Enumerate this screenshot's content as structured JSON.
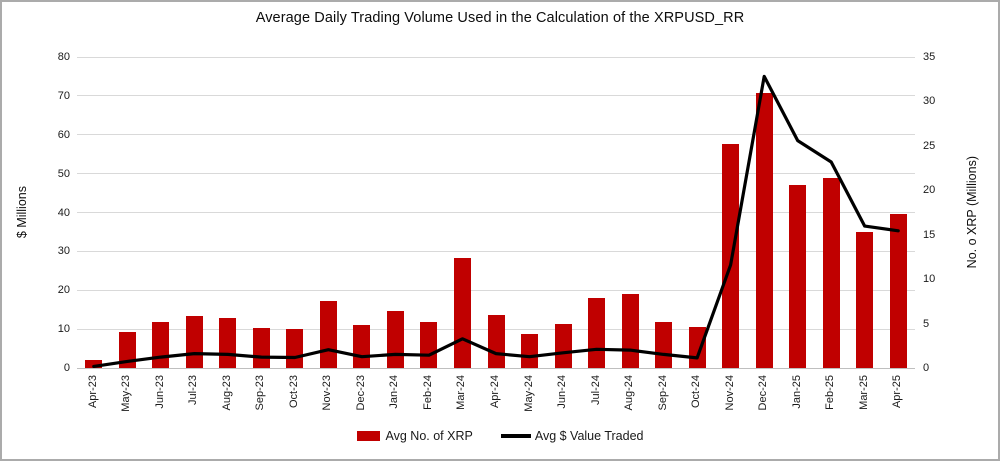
{
  "title": "Average Daily Trading Volume Used in the Calculation of the XRPUSD_RR",
  "left_axis": {
    "label": "$ Millions",
    "ticks": [
      "0",
      "10",
      "20",
      "30",
      "40",
      "50",
      "60",
      "70",
      "80"
    ],
    "max": 80
  },
  "right_axis": {
    "label": "No. o XRP (Millions)",
    "ticks": [
      "0",
      "5",
      "10",
      "15",
      "20",
      "25",
      "30",
      "35"
    ],
    "max": 35
  },
  "legend": {
    "bar_label": "Avg No. of XRP",
    "line_label": "Avg $ Value Traded"
  },
  "colors": {
    "bar": "#c00000",
    "line": "#000000",
    "gridline": "#d9d9d9",
    "axis_line": "#bfbfbf",
    "border": "#ababab"
  },
  "chart_data": {
    "type": "bar+line combo",
    "title": "Average Daily Trading Volume Used in the Calculation of the XRPUSD_RR",
    "categories": [
      "Apr-23",
      "May-23",
      "Jun-23",
      "Jul-23",
      "Aug-23",
      "Sep-23",
      "Oct-23",
      "Nov-23",
      "Dec-23",
      "Jan-24",
      "Feb-24",
      "Mar-24",
      "Apr-24",
      "May-24",
      "Jun-24",
      "Jul-24",
      "Aug-24",
      "Sep-24",
      "Oct-24",
      "Nov-24",
      "Dec-24",
      "Jan-25",
      "Feb-25",
      "Mar-25",
      "Apr-25"
    ],
    "series": [
      {
        "name": "Avg No. of XRP",
        "type": "bar",
        "axis": "right",
        "color": "#c00000",
        "values": [
          0.9,
          4.0,
          5.2,
          5.9,
          5.6,
          4.5,
          4.4,
          7.5,
          4.8,
          6.4,
          5.2,
          12.4,
          6.0,
          3.8,
          4.9,
          7.9,
          8.3,
          5.2,
          4.6,
          25.2,
          30.9,
          20.6,
          21.4,
          15.3,
          17.3
        ]
      },
      {
        "name": "Avg $ Value Traded",
        "type": "line",
        "axis": "left",
        "color": "#000000",
        "values": [
          0.4,
          1.7,
          2.8,
          3.7,
          3.5,
          2.8,
          2.7,
          4.7,
          2.9,
          3.5,
          3.3,
          7.5,
          3.7,
          2.9,
          3.9,
          4.8,
          4.6,
          3.5,
          2.6,
          26.5,
          75.0,
          58.5,
          53.0,
          36.5,
          35.3
        ]
      }
    ],
    "left_axis": {
      "label": "$ Millions",
      "range": [
        0,
        80
      ],
      "tick_step": 10
    },
    "right_axis": {
      "label": "No. o XRP (Millions)",
      "range": [
        0,
        35
      ],
      "tick_step": 5
    },
    "grid": true,
    "legend_position": "bottom"
  }
}
